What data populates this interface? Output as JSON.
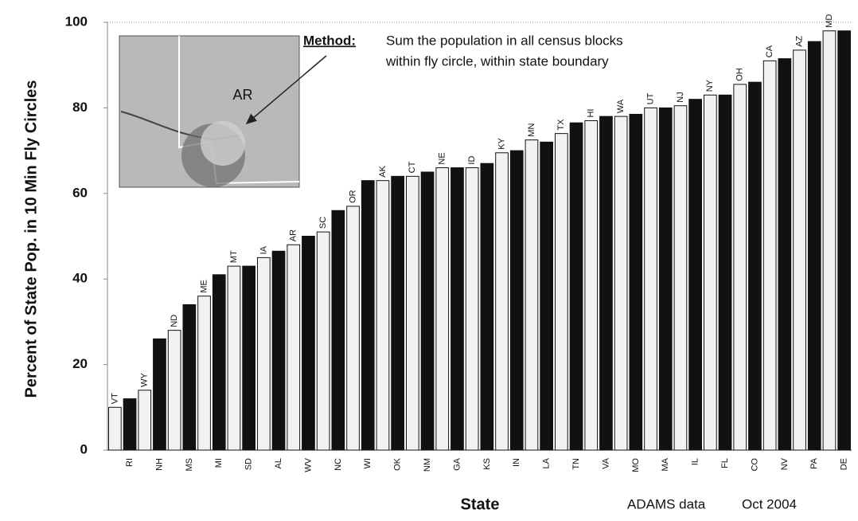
{
  "chart_data": {
    "type": "bar",
    "y_label": "Percent of State Pop. in 10 Min Fly Circles",
    "x_label": "State",
    "categories": [
      "VT",
      "RI",
      "WY",
      "NH",
      "ND",
      "MS",
      "ME",
      "MI",
      "MT",
      "SD",
      "IA",
      "AL",
      "AR",
      "WV",
      "SC",
      "NC",
      "OR",
      "WI",
      "AK",
      "OK",
      "CT",
      "NM",
      "NE",
      "GA",
      "ID",
      "KS",
      "KY",
      "IN",
      "MN",
      "LA",
      "TX",
      "TN",
      "HI",
      "VA",
      "WA",
      "MO",
      "UT",
      "MA",
      "NJ",
      "IL",
      "NY",
      "FL",
      "OH",
      "CO",
      "CA",
      "NV",
      "AZ",
      "PA",
      "MD",
      "DE"
    ],
    "values": [
      10,
      12,
      14,
      26,
      28,
      34,
      36,
      41,
      43,
      43,
      45,
      46.5,
      48,
      50,
      51,
      56,
      57,
      63,
      63,
      64,
      64,
      65,
      66,
      66,
      66,
      67,
      69.5,
      70,
      72.5,
      72,
      74,
      76.5,
      77,
      78,
      78,
      78.5,
      80,
      80,
      80.5,
      82,
      83,
      83,
      85.5,
      86,
      91,
      91.5,
      93.5,
      95.5,
      98,
      98
    ],
    "colors": [
      "#f2f2f2",
      "#111111"
    ],
    "ylim": [
      0,
      100
    ],
    "yticks": [
      0,
      20,
      40,
      60,
      80,
      100
    ],
    "annotation": {
      "method_label": "Method:",
      "method_lines": [
        "Sum the population in all census blocks",
        "within fly circle, within state boundary"
      ],
      "inset_label": "AR"
    },
    "source": "ADAMS data",
    "date": "Oct 2004"
  }
}
